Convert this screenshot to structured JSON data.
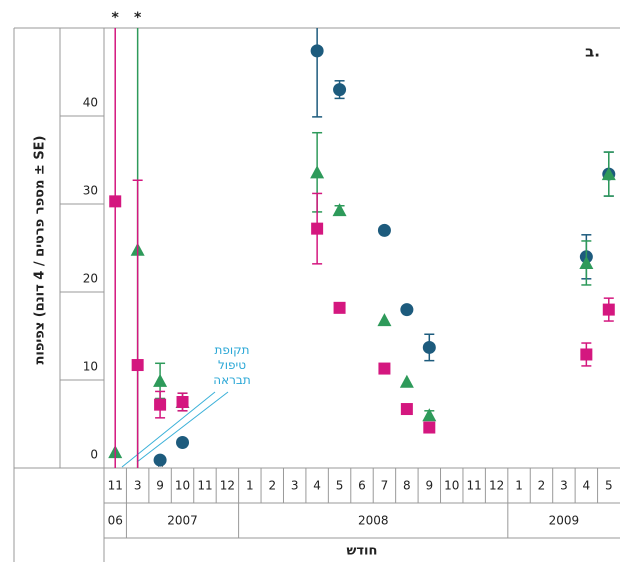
{
  "chart_data": {
    "type": "scatter",
    "panel_label": "ב.",
    "y_label": "צפיפות (מספר פרטים / 4 דונם ± SE)",
    "x_label": "חודש",
    "annotation": "תקופת\nטיפול\nתבראה",
    "annotations": [
      "*",
      "*"
    ],
    "categories": [
      "11",
      "3",
      "9",
      "10",
      "11",
      "12",
      "1",
      "2",
      "3",
      "4",
      "5",
      "6",
      "7",
      "8",
      "9",
      "10",
      "11",
      "12",
      "1",
      "2",
      "3",
      "4",
      "5"
    ],
    "year_groups": [
      {
        "label": "06",
        "count": 1
      },
      {
        "label": "2007",
        "count": 5
      },
      {
        "label": "2008",
        "count": 12
      },
      {
        "label": "2009",
        "count": 5
      }
    ],
    "ylim": [
      0,
      50
    ],
    "yticks": [
      0,
      10,
      20,
      30,
      40
    ],
    "series": [
      {
        "marker": "circle",
        "color": "#1d5b7d",
        "values": [
          null,
          null,
          0.9,
          2.9,
          null,
          null,
          null,
          null,
          null,
          47.4,
          43.0,
          null,
          27.0,
          18.0,
          13.7,
          null,
          null,
          null,
          null,
          null,
          null,
          24.0,
          33.4
        ],
        "errors": [
          null,
          null,
          null,
          null,
          null,
          null,
          null,
          null,
          null,
          7.5,
          1.0,
          null,
          null,
          null,
          1.5,
          null,
          null,
          null,
          null,
          null,
          null,
          2.5,
          2.5
        ]
      },
      {
        "marker": "triangle",
        "color": "#2e9a5a",
        "values": [
          1.8,
          24.8,
          9.9,
          7.5,
          null,
          null,
          null,
          null,
          null,
          33.6,
          29.3,
          null,
          16.8,
          9.8,
          6.0,
          null,
          null,
          null,
          null,
          null,
          null,
          23.3,
          33.4
        ],
        "errors": [
          null,
          26,
          2.0,
          1.0,
          null,
          null,
          null,
          null,
          null,
          4.5,
          0.5,
          null,
          null,
          null,
          0.5,
          null,
          null,
          null,
          null,
          null,
          null,
          2.5,
          2.5
        ]
      },
      {
        "marker": "square",
        "color": "#d4177f",
        "values": [
          30.3,
          11.7,
          7.2,
          7.5,
          null,
          null,
          null,
          null,
          null,
          27.2,
          18.2,
          null,
          11.3,
          6.7,
          4.6,
          null,
          null,
          null,
          null,
          null,
          null,
          12.9,
          18.0
        ],
        "errors": [
          31,
          21.0,
          1.5,
          1.0,
          null,
          null,
          null,
          null,
          null,
          4.0,
          null,
          null,
          null,
          null,
          null,
          null,
          null,
          null,
          null,
          null,
          null,
          1.3,
          1.3
        ]
      }
    ]
  }
}
